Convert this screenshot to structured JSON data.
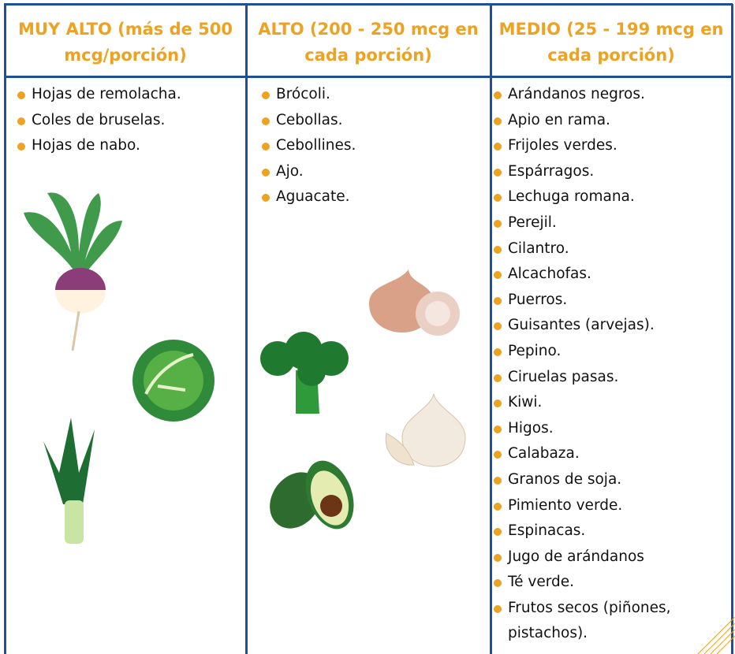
{
  "table": {
    "columns": [
      {
        "header": "MUY ALTO (más de 500 mcg/porción)",
        "items": [
          "Hojas de remolacha.",
          "Coles de bruselas.",
          "Hojas de nabo."
        ]
      },
      {
        "header": "ALTO (200 - 250 mcg en cada porción)",
        "items": [
          "Brócoli.",
          "Cebollas.",
          "Cebollines.",
          "Ajo.",
          "Aguacate."
        ]
      },
      {
        "header": "MEDIO (25 - 199 mcg en cada porción)",
        "items": [
          "Arándanos negros.",
          "Apio en rama.",
          "Frijoles verdes.",
          "Espárragos.",
          "Lechuga romana.",
          "Perejil.",
          "Cilantro.",
          "Alcachofas.",
          "Puerros.",
          "Guisantes (arvejas).",
          "Pepino.",
          "Ciruelas pasas.",
          "Kiwi.",
          "Higos.",
          "Calabaza.",
          "Granos de soja.",
          "Pimiento verde.",
          "Espinacas.",
          "Jugo de arándanos",
          "Té verde.",
          "Frutos secos (piñones, pistachos)."
        ]
      }
    ]
  }
}
